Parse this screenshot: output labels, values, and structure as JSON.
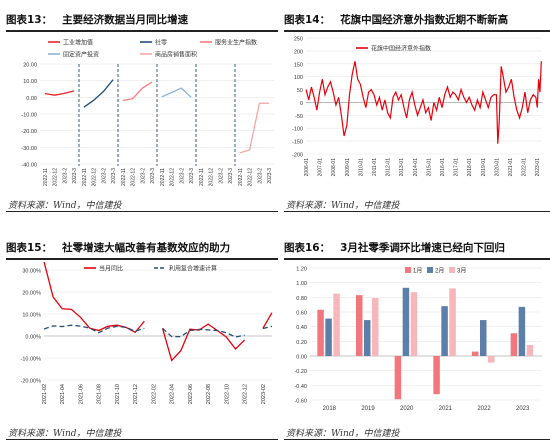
{
  "source_label": "资料来源：Wind，中信建投",
  "chart_data": [
    {
      "id": "c13",
      "type": "line",
      "number": "图表13：",
      "title": "主要经济数据当月同比增速",
      "ylim": [
        -40,
        20
      ],
      "yticks": [
        "20.00",
        "10.00",
        "0.00",
        "-10.00",
        "-20.00",
        "-30.00",
        "-40.00"
      ],
      "ytick_values": [
        20,
        10,
        0,
        -10,
        -20,
        -30,
        -40
      ],
      "xticks": [
        "2022-11",
        "2022-12",
        "2023-2",
        "2023-3",
        "2022-11",
        "2022-12",
        "2023-2",
        "2023-3",
        "2022-11",
        "2022-12",
        "2023-2",
        "2023-3",
        "2022-11",
        "2022-12",
        "2023-2",
        "2023-3",
        "2022-11",
        "2022-12",
        "2023-2",
        "2023-3",
        "2022-11",
        "2022-12",
        "2023-2",
        "2023-3"
      ],
      "legend": [
        "工业增加值",
        "社零",
        "服务业生产指数",
        "固定资产投资",
        "商品房销售面积"
      ],
      "series": [
        {
          "name": "工业增加值",
          "color": "#e8262a",
          "x": [
            0,
            1,
            2,
            3
          ],
          "values": [
            2.2,
            1.3,
            2.4,
            3.9
          ]
        },
        {
          "name": "社零",
          "color": "#1f4e79",
          "x": [
            4,
            5,
            6,
            7
          ],
          "values": [
            -5.9,
            -1.8,
            3.5,
            10.6
          ]
        },
        {
          "name": "服务业生产指数",
          "color": "#ff7a7a",
          "x": [
            8,
            9,
            10,
            11
          ],
          "values": [
            -1.9,
            -0.8,
            5.5,
            9.2
          ]
        },
        {
          "name": "固定资产投资",
          "color": "#8eb4d8",
          "x": [
            12,
            13,
            14,
            15
          ],
          "values": [
            0.3,
            2.9,
            5.5,
            0
          ]
        },
        {
          "name": "商品房销售面积",
          "color": "#f7a6a6",
          "x": [
            20,
            21,
            22,
            23
          ],
          "values": [
            -33.3,
            -31.5,
            -3.6,
            -3.5
          ]
        }
      ]
    },
    {
      "id": "c14",
      "type": "line",
      "number": "图表14：",
      "title": "花旗中国经济意外指数近期不断新高",
      "ylim": [
        -200,
        250
      ],
      "yticks": [
        "250",
        "200",
        "150",
        "100",
        "50",
        "0",
        "-50",
        "-100",
        "-150",
        "-200"
      ],
      "ytick_values": [
        250,
        200,
        150,
        100,
        50,
        0,
        -50,
        -100,
        -150,
        -200
      ],
      "xticks": [
        "2006-01",
        "2007-01",
        "2008-01",
        "2009-01",
        "2010-01",
        "2011-01",
        "2012-01",
        "2013-01",
        "2014-01",
        "2015-01",
        "2016-01",
        "2017-01",
        "2018-01",
        "2019-01",
        "2020-01",
        "2021-01",
        "2022-01",
        "2023-01"
      ],
      "legend": [
        "花旗中国经济意外指数"
      ],
      "series": [
        {
          "name": "花旗中国经济意外指数",
          "color": "#e8000b",
          "x": [
            2006.0,
            2006.2,
            2006.4,
            2006.6,
            2006.8,
            2007.0,
            2007.2,
            2007.4,
            2007.6,
            2007.8,
            2008.0,
            2008.2,
            2008.4,
            2008.6,
            2008.8,
            2009.0,
            2009.2,
            2009.4,
            2009.6,
            2009.8,
            2010.0,
            2010.2,
            2010.4,
            2010.6,
            2010.8,
            2011.0,
            2011.2,
            2011.4,
            2011.6,
            2011.8,
            2012.0,
            2012.2,
            2012.4,
            2012.6,
            2012.8,
            2013.0,
            2013.2,
            2013.4,
            2013.6,
            2013.8,
            2014.0,
            2014.2,
            2014.4,
            2014.6,
            2014.8,
            2015.0,
            2015.2,
            2015.4,
            2015.6,
            2015.8,
            2016.0,
            2016.2,
            2016.4,
            2016.6,
            2016.8,
            2017.0,
            2017.2,
            2017.4,
            2017.6,
            2017.8,
            2018.0,
            2018.2,
            2018.4,
            2018.6,
            2018.8,
            2019.0,
            2019.2,
            2019.4,
            2019.6,
            2019.8,
            2020.0,
            2020.1,
            2020.2,
            2020.35,
            2020.5,
            2020.7,
            2020.9,
            2021.1,
            2021.3,
            2021.5,
            2021.7,
            2021.9,
            2022.1,
            2022.3,
            2022.5,
            2022.7,
            2022.9,
            2023.0,
            2023.1,
            2023.2,
            2023.3
          ],
          "values": [
            50,
            10,
            60,
            20,
            -30,
            40,
            90,
            30,
            60,
            80,
            40,
            -10,
            20,
            -50,
            -130,
            -90,
            30,
            110,
            160,
            90,
            70,
            20,
            -20,
            40,
            50,
            30,
            -10,
            20,
            -30,
            10,
            -40,
            -60,
            20,
            40,
            10,
            30,
            -20,
            -60,
            10,
            40,
            -10,
            -50,
            -20,
            10,
            -40,
            -20,
            -70,
            0,
            -30,
            20,
            -20,
            30,
            60,
            20,
            40,
            30,
            10,
            50,
            20,
            0,
            20,
            -10,
            -30,
            10,
            -20,
            40,
            10,
            -20,
            20,
            30,
            30,
            -160,
            -80,
            140,
            100,
            40,
            60,
            90,
            20,
            -30,
            -60,
            -20,
            40,
            -40,
            10,
            30,
            20,
            -20,
            90,
            40,
            160
          ]
        }
      ]
    },
    {
      "id": "c15",
      "type": "line",
      "number": "图表15：",
      "title": "社零增速大幅改善有基数效应的助力",
      "ylim": [
        -20,
        30
      ],
      "yticks": [
        "30.00%",
        "20.00%",
        "10.00%",
        "0.00%",
        "-10.00%",
        "-20.00%"
      ],
      "ytick_values": [
        30,
        20,
        10,
        0,
        -10,
        -20
      ],
      "xticks": [
        "2021-02",
        "2021-04",
        "2021-06",
        "2021-08",
        "2021-10",
        "2021-12",
        "2022-02",
        "2022-04",
        "2022-06",
        "2022-08",
        "2022-10",
        "2022-12",
        "2023-02"
      ],
      "legend": [
        "当月同比",
        "利用复合增速计算"
      ],
      "series": [
        {
          "name": "当月同比",
          "color": "#e8000b",
          "dash": false,
          "values": [
            33.8,
            17.7,
            12.4,
            12.1,
            8.5,
            3.6,
            2.5,
            4.4,
            4.9,
            3.9,
            1.7,
            6.7,
            null,
            3.5,
            -11.1,
            -6.7,
            3.1,
            2.7,
            5.4,
            2.5,
            -0.5,
            -5.9,
            -1.8,
            null,
            3.5,
            10.6
          ]
        },
        {
          "name": "利用复合增速计算",
          "color": "#1f4e79",
          "dash": true,
          "values": [
            3.2,
            4.6,
            4.3,
            4.9,
            4.5,
            3.6,
            1.5,
            3.6,
            4.4,
            3.9,
            2.2,
            3.5,
            null,
            3.5,
            -0.3,
            -0.3,
            2.5,
            3.0,
            2.8,
            2.5,
            1.5,
            -0.5,
            0.4,
            null,
            3.4,
            4.4
          ]
        }
      ]
    },
    {
      "id": "c16",
      "type": "bar",
      "number": "图表16：",
      "title": "3月社零季调环比增速已经向下回归",
      "ylim": [
        -0.6,
        1.2
      ],
      "yticks": [
        "1.20",
        "1.00",
        "0.80",
        "0.60",
        "0.40",
        "0.20",
        "0.00",
        "-0.20",
        "-0.40",
        "-0.60"
      ],
      "ytick_values": [
        1.2,
        1.0,
        0.8,
        0.6,
        0.4,
        0.2,
        0,
        -0.2,
        -0.4,
        -0.6
      ],
      "categories": [
        "2018",
        "2019",
        "2020",
        "2021",
        "2022",
        "2023"
      ],
      "series": [
        {
          "name": "1月",
          "color": "#f2777c",
          "values": [
            0.63,
            0.83,
            -0.59,
            -0.52,
            0.06,
            0.31
          ]
        },
        {
          "name": "2月",
          "color": "#5b7fa8",
          "values": [
            0.51,
            0.49,
            0.93,
            0.68,
            0.49,
            0.67
          ]
        },
        {
          "name": "3月",
          "color": "#f7b6b9",
          "values": [
            0.85,
            0.79,
            0.87,
            0.92,
            -0.09,
            0.15
          ]
        }
      ]
    }
  ]
}
